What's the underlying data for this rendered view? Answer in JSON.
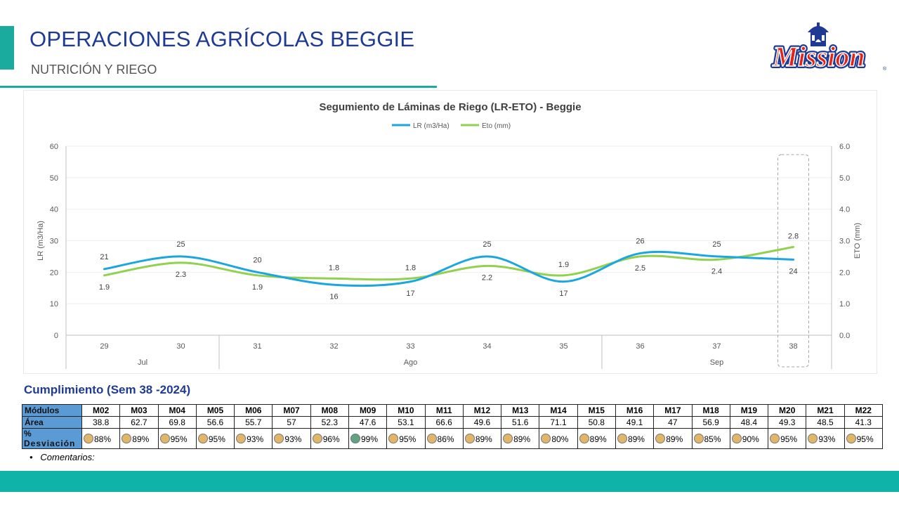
{
  "header": {
    "title": "OPERACIONES AGRÍCOLAS BEGGIE",
    "subtitle": "NUTRICIÓN Y RIEGO",
    "logo_text": "Mission",
    "accent_color": "#1aaa9e",
    "title_color": "#1f3a93"
  },
  "chart_data": {
    "type": "line",
    "title": "Segumiento de Láminas de Riego (LR-ETO) - Beggie",
    "categories": [
      "29",
      "30",
      "31",
      "32",
      "33",
      "34",
      "35",
      "36",
      "37",
      "38"
    ],
    "month_groups": [
      {
        "label": "Jul",
        "start": 0,
        "end": 1
      },
      {
        "label": "Ago",
        "start": 2,
        "end": 6
      },
      {
        "label": "Sep",
        "start": 7,
        "end": 9
      }
    ],
    "series": [
      {
        "name": "LR (m3/Ha)",
        "axis": "left",
        "color": "#1ca6e0",
        "values": [
          21,
          25,
          20,
          16,
          17,
          25,
          17,
          26,
          25,
          24
        ],
        "labels": [
          "21",
          "25",
          "20",
          "16",
          "17",
          "25",
          "17",
          "26",
          "25",
          "24"
        ]
      },
      {
        "name": "Eto (mm)",
        "axis": "right",
        "color": "#92d050",
        "values": [
          1.9,
          2.3,
          1.9,
          1.8,
          1.8,
          2.2,
          1.9,
          2.5,
          2.4,
          2.8
        ],
        "labels": [
          "1.9",
          "2.3",
          "1.9",
          "1.8",
          "1.8",
          "2.2",
          "1.9",
          "2.5",
          "2.4",
          "2.8"
        ]
      }
    ],
    "ylabel": "LR (m3/Ha)",
    "y2label": "ETO (mm)",
    "ylim": [
      0,
      60
    ],
    "y2lim": [
      0,
      6
    ],
    "yticks": [
      "0",
      "10",
      "20",
      "30",
      "40",
      "50",
      "60"
    ],
    "y2ticks": [
      "0.0",
      "1.0",
      "2.0",
      "3.0",
      "4.0",
      "5.0",
      "6.0"
    ],
    "legend": "top",
    "grid": true,
    "highlight_category": "38"
  },
  "compliance": {
    "title": "Cumplimiento (Sem 38 -2024)",
    "row_labels": {
      "modules": "Módulos",
      "area": "Área",
      "deviation": "% Desviación"
    },
    "modules": [
      "M02",
      "M03",
      "M04",
      "M05",
      "M06",
      "M07",
      "M08",
      "M09",
      "M10",
      "M11",
      "M12",
      "M13",
      "M14",
      "M15",
      "M16",
      "M17",
      "M18",
      "M19",
      "M20",
      "M21",
      "M22"
    ],
    "area": [
      "38.8",
      "62.7",
      "69.8",
      "56.6",
      "55.7",
      "57",
      "52.3",
      "47.6",
      "53.1",
      "66.6",
      "49.6",
      "51.6",
      "71.1",
      "50.8",
      "49.1",
      "47",
      "56.9",
      "48.4",
      "49.3",
      "48.5",
      "41.3"
    ],
    "deviation": [
      "88%",
      "89%",
      "95%",
      "95%",
      "93%",
      "93%",
      "96%",
      "99%",
      "95%",
      "86%",
      "89%",
      "89%",
      "80%",
      "89%",
      "89%",
      "89%",
      "85%",
      "90%",
      "95%",
      "93%",
      "95%"
    ],
    "deviation_status": [
      "warn",
      "warn",
      "warn",
      "warn",
      "warn",
      "warn",
      "warn",
      "ok",
      "warn",
      "warn",
      "warn",
      "warn",
      "warn",
      "warn",
      "warn",
      "warn",
      "warn",
      "warn",
      "warn",
      "warn",
      "warn"
    ],
    "status_colors": {
      "warn": "#e2b66a",
      "ok": "#5fa383"
    }
  },
  "comments": {
    "label": "Comentarios:"
  },
  "footer": {
    "color": "#0fb3a8"
  }
}
